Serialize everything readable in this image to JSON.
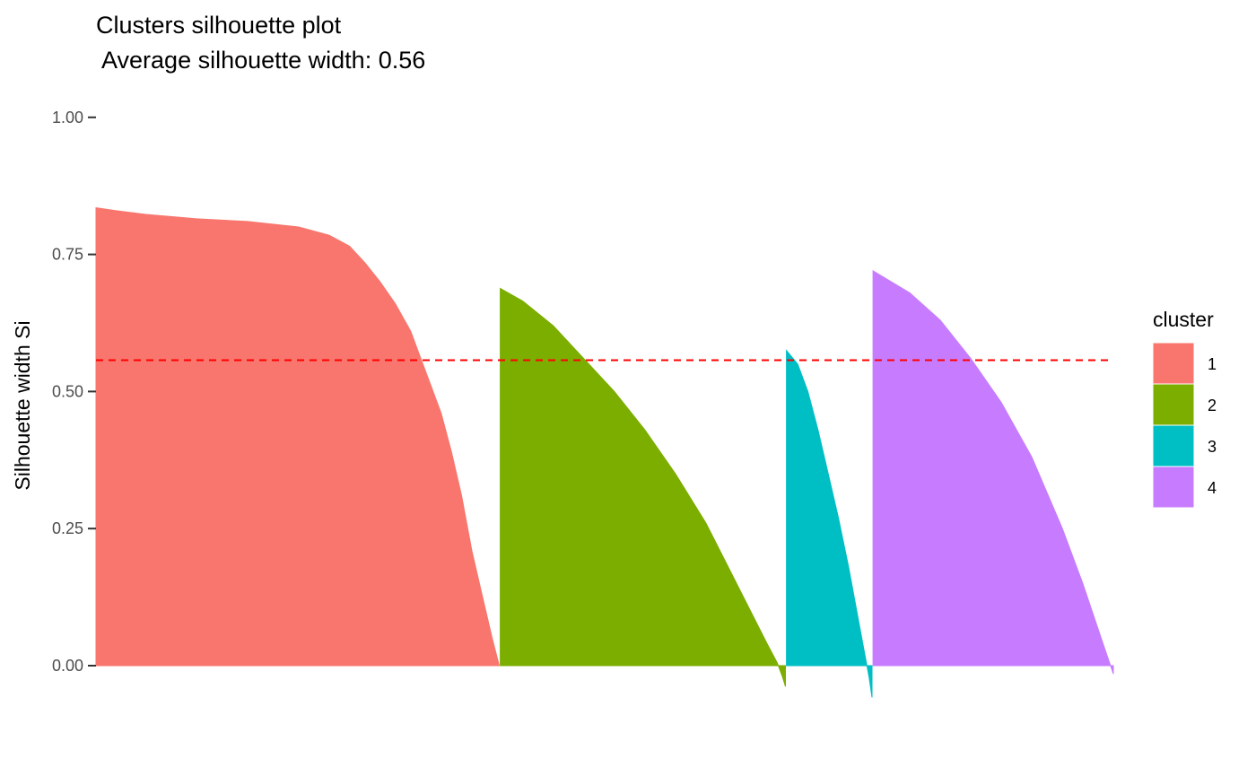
{
  "chart_data": {
    "type": "area",
    "title": "Clusters silhouette plot",
    "subtitle": " Average silhouette width: 0.56",
    "xlabel": "",
    "ylabel": "Silhouette width Si",
    "ylim": [
      -0.1,
      1.0
    ],
    "y_ticks": [
      0.0,
      0.25,
      0.5,
      0.75,
      1.0
    ],
    "y_tick_labels": [
      "0.00",
      "0.25",
      "0.50",
      "0.75",
      "1.00"
    ],
    "grid": false,
    "average_silhouette_width": 0.557,
    "reference_line": {
      "y": 0.557,
      "style": "dashed",
      "color": "#ff0000"
    },
    "n_observations": 1000,
    "legend": {
      "title": "cluster",
      "position": "right"
    },
    "series": [
      {
        "name": "1",
        "color": "#F8766D",
        "x": [
          1,
          20,
          50,
          100,
          150,
          200,
          230,
          250,
          265,
          280,
          295,
          310,
          320,
          330,
          340,
          350,
          360,
          370,
          380,
          390,
          397
        ],
        "values": [
          0.835,
          0.83,
          0.823,
          0.815,
          0.81,
          0.8,
          0.785,
          0.765,
          0.735,
          0.7,
          0.66,
          0.61,
          0.56,
          0.51,
          0.46,
          0.39,
          0.31,
          0.21,
          0.13,
          0.05,
          0.0
        ]
      },
      {
        "name": "2",
        "color": "#7CAE00",
        "x": [
          398,
          420,
          450,
          480,
          510,
          540,
          570,
          600,
          630,
          660,
          670,
          675,
          678
        ],
        "values": [
          0.688,
          0.665,
          0.62,
          0.56,
          0.5,
          0.43,
          0.35,
          0.26,
          0.15,
          0.04,
          0.005,
          -0.02,
          -0.038
        ]
      },
      {
        "name": "3",
        "color": "#00BFC4",
        "x": [
          679,
          690,
          700,
          710,
          720,
          730,
          740,
          750,
          755,
          760,
          763
        ],
        "values": [
          0.575,
          0.55,
          0.5,
          0.43,
          0.35,
          0.27,
          0.18,
          0.08,
          0.03,
          -0.02,
          -0.058
        ]
      },
      {
        "name": "4",
        "color": "#C77CFF",
        "x": [
          764,
          800,
          830,
          860,
          890,
          920,
          950,
          970,
          990,
          1000
        ],
        "values": [
          0.72,
          0.68,
          0.63,
          0.56,
          0.48,
          0.38,
          0.25,
          0.15,
          0.04,
          -0.015
        ]
      }
    ]
  }
}
